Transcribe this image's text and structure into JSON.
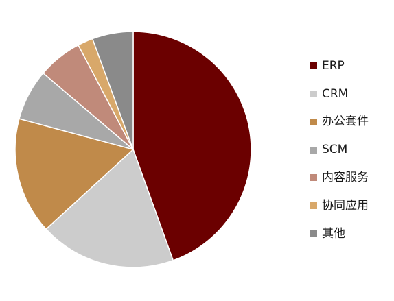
{
  "theme": {
    "rule_color": "#9b1c1c"
  },
  "chart_data": {
    "type": "pie",
    "title": "",
    "start_angle_deg": 0,
    "direction": "clockwise",
    "categories": [
      "ERP",
      "CRM",
      "办公套件",
      "SCM",
      "内容服务",
      "协同应用",
      "其他"
    ],
    "values": [
      44.5,
      18.7,
      16.0,
      7.0,
      6.1,
      2.1,
      5.6
    ],
    "unit": "%",
    "colors": [
      "#6b0000",
      "#cccccc",
      "#c08a4a",
      "#a8a8a8",
      "#c08a7a",
      "#d8a86a",
      "#8a8a8a"
    ],
    "slice_stroke": "#ffffff",
    "legend_position": "right",
    "legend": [
      {
        "label": "ERP",
        "color": "#6b0000"
      },
      {
        "label": "CRM",
        "color": "#cccccc"
      },
      {
        "label": "办公套件",
        "color": "#c08a4a"
      },
      {
        "label": "SCM",
        "color": "#a8a8a8"
      },
      {
        "label": "内容服务",
        "color": "#c08a7a"
      },
      {
        "label": "协同应用",
        "color": "#d8a86a"
      },
      {
        "label": "其他",
        "color": "#8a8a8a"
      }
    ]
  }
}
